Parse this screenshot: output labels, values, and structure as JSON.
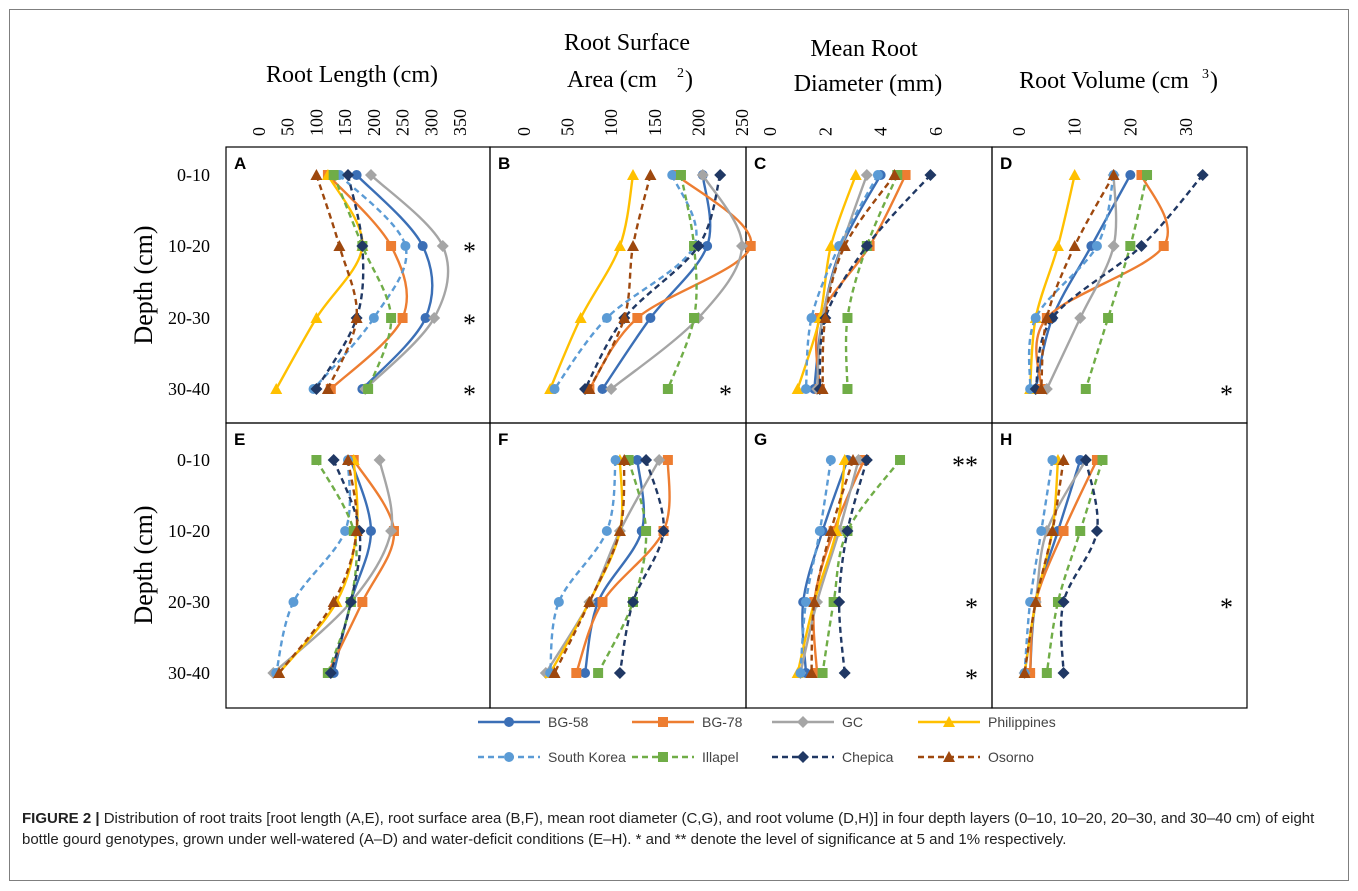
{
  "figure": {
    "y_label": "Depth (cm)",
    "depth_labels": [
      "0-10",
      "10-20",
      "20-30",
      "30-40"
    ],
    "column_titles": [
      {
        "line1": "Root Length (cm)",
        "line2": "",
        "sup": ""
      },
      {
        "line1": "Root Surface",
        "line2": "Area (cm",
        "sup": "2",
        "close": ")"
      },
      {
        "line1": "Mean Root",
        "line2": "Diameter (mm)",
        "sup": ""
      },
      {
        "line1": "Root Volume (cm",
        "line2": "",
        "sup": "3",
        "close": ")"
      }
    ],
    "axis_ticks": [
      [
        "0",
        "50",
        "100",
        "150",
        "200",
        "250",
        "300",
        "350"
      ],
      [
        "0",
        "50",
        "100",
        "150",
        "200",
        "250"
      ],
      [
        "0",
        "2",
        "4",
        "6"
      ],
      [
        "0",
        "10",
        "20",
        "30"
      ]
    ],
    "panel_letters": [
      "A",
      "B",
      "C",
      "D",
      "E",
      "F",
      "G",
      "H"
    ]
  },
  "chart_data": {
    "type": "line",
    "x_axis_orientation": "top",
    "y_axis": "depth",
    "depth_categories": [
      "0-10",
      "10-20",
      "20-30",
      "30-40"
    ],
    "series": [
      {
        "name": "BG-58",
        "color": "#3b6fb6",
        "marker": "circle",
        "dash": "solid"
      },
      {
        "name": "BG-78",
        "color": "#ed7d31",
        "marker": "square",
        "dash": "solid"
      },
      {
        "name": "GC",
        "color": "#a5a5a5",
        "marker": "diamond",
        "dash": "solid"
      },
      {
        "name": "Philippines",
        "color": "#ffc000",
        "marker": "triangle",
        "dash": "solid"
      },
      {
        "name": "South Korea",
        "color": "#5b9bd5",
        "marker": "circle",
        "dash": "dashed"
      },
      {
        "name": "Illapel",
        "color": "#70ad47",
        "marker": "square",
        "dash": "dashed"
      },
      {
        "name": "Chepica",
        "color": "#203864",
        "marker": "diamond",
        "dash": "dashed"
      },
      {
        "name": "Osorno",
        "color": "#9e480e",
        "marker": "triangle",
        "dash": "dashed"
      }
    ],
    "panels": [
      {
        "letter": "A",
        "trait": "Root Length (cm)",
        "xlim": [
          0,
          350
        ],
        "significance": [
          "",
          "*",
          "*",
          "*"
        ],
        "values": {
          "BG-58": [
            170,
            285,
            290,
            180
          ],
          "BG-78": [
            120,
            230,
            250,
            125
          ],
          "GC": [
            195,
            320,
            305,
            185
          ],
          "Philippines": [
            120,
            180,
            100,
            30
          ],
          "South Korea": [
            140,
            255,
            200,
            95
          ],
          "Illapel": [
            130,
            180,
            230,
            190
          ],
          "Chepica": [
            155,
            180,
            170,
            100
          ],
          "Osorno": [
            100,
            140,
            170,
            120
          ]
        }
      },
      {
        "letter": "B",
        "trait": "Root Surface Area (cm2)",
        "xlim": [
          0,
          250
        ],
        "significance": [
          "",
          "",
          "",
          "*"
        ],
        "values": {
          "BG-58": [
            205,
            210,
            145,
            90
          ],
          "BG-78": [
            175,
            260,
            130,
            75
          ],
          "GC": [
            205,
            250,
            200,
            100
          ],
          "Philippines": [
            125,
            110,
            65,
            30
          ],
          "South Korea": [
            170,
            195,
            95,
            35
          ],
          "Illapel": [
            180,
            195,
            195,
            165
          ],
          "Chepica": [
            225,
            200,
            115,
            70
          ],
          "Osorno": [
            145,
            125,
            115,
            75
          ]
        }
      },
      {
        "letter": "C",
        "trait": "Mean Root Diameter (mm)",
        "xlim": [
          0,
          6
        ],
        "significance": [
          "",
          "",
          "",
          ""
        ],
        "values": {
          "BG-58": [
            4.0,
            2.6,
            1.9,
            1.6
          ],
          "BG-78": [
            4.9,
            3.6,
            1.8,
            1.8
          ],
          "GC": [
            3.5,
            2.6,
            1.9,
            1.7
          ],
          "Philippines": [
            3.1,
            2.2,
            1.8,
            1.0
          ],
          "South Korea": [
            3.9,
            2.5,
            1.5,
            1.3
          ],
          "Illapel": [
            4.6,
            3.5,
            2.8,
            2.8
          ],
          "Chepica": [
            5.8,
            3.5,
            2.0,
            1.8
          ],
          "Osorno": [
            4.5,
            2.7,
            2.0,
            1.9
          ]
        }
      },
      {
        "letter": "D",
        "trait": "Root Volume (cm3)",
        "xlim": [
          0,
          35
        ],
        "significance": [
          "",
          "",
          "",
          "*"
        ],
        "values": {
          "BG-58": [
            20,
            13,
            6,
            3
          ],
          "BG-78": [
            22,
            26,
            5,
            4
          ],
          "GC": [
            17,
            17,
            11,
            5
          ],
          "Philippines": [
            10,
            7,
            3,
            2
          ],
          "South Korea": [
            17,
            14,
            3,
            2
          ],
          "Illapel": [
            23,
            20,
            16,
            12
          ],
          "Chepica": [
            33,
            22,
            6,
            3
          ],
          "Osorno": [
            17,
            10,
            5,
            4
          ]
        }
      },
      {
        "letter": "E",
        "trait": "Root Length (cm)",
        "xlim": [
          0,
          350
        ],
        "significance": [
          "",
          "",
          "",
          ""
        ],
        "values": {
          "BG-58": [
            160,
            195,
            160,
            130
          ],
          "BG-78": [
            165,
            235,
            180,
            120
          ],
          "GC": [
            210,
            230,
            160,
            25
          ],
          "Philippines": [
            165,
            170,
            135,
            35
          ],
          "South Korea": [
            155,
            150,
            60,
            30
          ],
          "Illapel": [
            100,
            165,
            160,
            120
          ],
          "Chepica": [
            130,
            175,
            160,
            125
          ],
          "Osorno": [
            155,
            170,
            130,
            35
          ]
        }
      },
      {
        "letter": "F",
        "trait": "Root Surface Area (cm2)",
        "xlim": [
          0,
          250
        ],
        "significance": [
          "",
          "",
          "",
          ""
        ],
        "values": {
          "BG-58": [
            130,
            135,
            85,
            70
          ],
          "BG-78": [
            165,
            160,
            90,
            60
          ],
          "GC": [
            155,
            110,
            75,
            25
          ],
          "Philippines": [
            110,
            110,
            75,
            30
          ],
          "South Korea": [
            105,
            95,
            40,
            30
          ],
          "Illapel": [
            120,
            140,
            125,
            85
          ],
          "Chepica": [
            140,
            160,
            125,
            110
          ],
          "Osorno": [
            115,
            110,
            75,
            35
          ]
        }
      },
      {
        "letter": "G",
        "trait": "Mean Root Diameter (mm)",
        "xlim": [
          0,
          6
        ],
        "significance": [
          "**",
          "",
          "*",
          "*"
        ],
        "values": {
          "BG-58": [
            2.8,
            1.9,
            1.2,
            1.3
          ],
          "BG-78": [
            3.4,
            2.3,
            1.6,
            1.7
          ],
          "GC": [
            3.2,
            2.5,
            1.7,
            1.1
          ],
          "Philippines": [
            2.7,
            2.4,
            1.6,
            1.0
          ],
          "South Korea": [
            2.2,
            1.8,
            1.3,
            1.1
          ],
          "Illapel": [
            4.7,
            2.8,
            2.3,
            1.9
          ],
          "Chepica": [
            3.5,
            2.8,
            2.5,
            2.7
          ],
          "Osorno": [
            3.0,
            2.2,
            1.6,
            1.5
          ]
        }
      },
      {
        "letter": "H",
        "trait": "Root Volume (cm3)",
        "xlim": [
          0,
          35
        ],
        "significance": [
          "",
          "",
          "*",
          ""
        ],
        "values": {
          "BG-58": [
            11,
            7,
            3,
            2
          ],
          "BG-78": [
            14,
            8,
            3,
            2
          ],
          "GC": [
            12,
            5,
            3,
            1
          ],
          "Philippines": [
            7,
            6,
            3,
            1
          ],
          "South Korea": [
            6,
            4,
            2,
            1
          ],
          "Illapel": [
            15,
            11,
            7,
            5
          ],
          "Chepica": [
            12,
            14,
            8,
            8
          ],
          "Osorno": [
            8,
            6,
            3,
            1
          ]
        }
      }
    ]
  },
  "caption": {
    "figure_label": "FIGURE 2 |",
    "text": "Distribution of root traits [root length (A,E), root surface area (B,F), mean root diameter (C,G), and root volume (D,H)] in four depth layers (0–10, 10–20, 20–30, and 30–40 cm) of eight bottle gourd genotypes, grown under well-watered (A–D) and water-deficit conditions (E–H). * and ** denote the level of significance at 5 and 1% respectively."
  }
}
